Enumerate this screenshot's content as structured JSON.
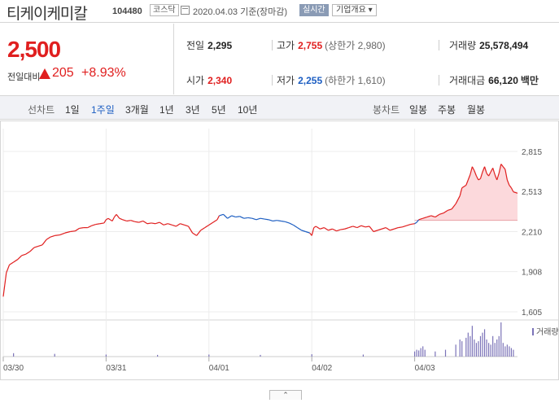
{
  "header": {
    "stock_name": "티케이케미칼",
    "stock_code": "104480",
    "market": "코스닥",
    "date_text": "2020.04.03 기준(장마감)",
    "realtime_label": "실시간",
    "company_info_label": "기업개요 ▾",
    "calendar_icon": "calendar-icon"
  },
  "price": {
    "current": "2,500",
    "change_label": "전일대비",
    "change_value": "205",
    "change_pct": "+8.93%",
    "direction": "up"
  },
  "stats": {
    "prev_close_label": "전일",
    "prev_close": "2,295",
    "high_label": "고가",
    "high": "2,755",
    "upper_limit": "(상한가 2,980)",
    "volume_label": "거래량",
    "volume": "25,578,494",
    "open_label": "시가",
    "open": "2,340",
    "low_label": "저가",
    "low": "2,255",
    "lower_limit": "(하한가 1,610)",
    "amount_label": "거래대금",
    "amount": "66,120",
    "amount_unit": "백만"
  },
  "periods": {
    "line_label": "선차트",
    "line_tabs": [
      "1일",
      "1주일",
      "3개월",
      "1년",
      "3년",
      "5년",
      "10년"
    ],
    "selected": "1주일",
    "candle_label": "봉차트",
    "candle_tabs": [
      "일봉",
      "주봉",
      "월봉"
    ]
  },
  "colors": {
    "up": "#e01f1f",
    "down": "#1d5ec2",
    "volume": "#7b73b8",
    "fill": "#fcd9dc"
  },
  "chart_data": {
    "type": "line",
    "title": "",
    "x_labels": [
      "03/30",
      "03/31",
      "04/01",
      "04/02",
      "04/03"
    ],
    "y_ticks": [
      2815,
      2513,
      2210,
      1908,
      1605
    ],
    "ylim": [
      1605,
      2815
    ],
    "reference_price": 2295,
    "grid": true,
    "volume_legend": "거래량",
    "collapse_label": "⌃",
    "series": [
      {
        "values": [
          [
            0,
            1720
          ],
          [
            0.03,
            1900
          ],
          [
            0.06,
            1960
          ],
          [
            0.1,
            1980
          ],
          [
            0.14,
            2000
          ],
          [
            0.18,
            2030
          ],
          [
            0.22,
            2040
          ],
          [
            0.26,
            2060
          ],
          [
            0.3,
            2090
          ],
          [
            0.34,
            2100
          ],
          [
            0.38,
            2110
          ],
          [
            0.42,
            2150
          ],
          [
            0.46,
            2170
          ],
          [
            0.5,
            2180
          ],
          [
            0.55,
            2185
          ],
          [
            0.6,
            2200
          ],
          [
            0.65,
            2210
          ],
          [
            0.7,
            2215
          ],
          [
            0.74,
            2235
          ],
          [
            0.78,
            2240
          ],
          [
            0.82,
            2240
          ],
          [
            0.86,
            2255
          ],
          [
            0.9,
            2265
          ],
          [
            0.94,
            2270
          ],
          [
            0.98,
            2275
          ],
          [
            1.0,
            2300
          ],
          [
            1.02,
            2310
          ],
          [
            1.04,
            2300
          ],
          [
            1.06,
            2290
          ],
          [
            1.08,
            2320
          ],
          [
            1.1,
            2340
          ],
          [
            1.13,
            2310
          ],
          [
            1.16,
            2300
          ],
          [
            1.2,
            2290
          ],
          [
            1.24,
            2295
          ],
          [
            1.28,
            2285
          ],
          [
            1.32,
            2280
          ],
          [
            1.36,
            2290
          ],
          [
            1.4,
            2270
          ],
          [
            1.44,
            2275
          ],
          [
            1.48,
            2270
          ],
          [
            1.52,
            2280
          ],
          [
            1.56,
            2260
          ],
          [
            1.6,
            2270
          ],
          [
            1.64,
            2260
          ],
          [
            1.68,
            2250
          ],
          [
            1.72,
            2270
          ],
          [
            1.76,
            2260
          ],
          [
            1.8,
            2250
          ],
          [
            1.84,
            2200
          ],
          [
            1.88,
            2180
          ],
          [
            1.92,
            2220
          ],
          [
            1.96,
            2240
          ],
          [
            2.0,
            2260
          ],
          [
            2.04,
            2280
          ],
          [
            2.08,
            2300
          ],
          [
            2.1,
            2330
          ],
          [
            2.14,
            2340
          ],
          [
            2.18,
            2310
          ],
          [
            2.22,
            2330
          ],
          [
            2.26,
            2320
          ],
          [
            2.3,
            2325
          ],
          [
            2.34,
            2310
          ],
          [
            2.38,
            2315
          ],
          [
            2.42,
            2310
          ],
          [
            2.46,
            2300
          ],
          [
            2.5,
            2310
          ],
          [
            2.54,
            2305
          ],
          [
            2.58,
            2300
          ],
          [
            2.62,
            2290
          ],
          [
            2.66,
            2295
          ],
          [
            2.7,
            2290
          ],
          [
            2.74,
            2285
          ],
          [
            2.78,
            2275
          ],
          [
            2.82,
            2260
          ],
          [
            2.86,
            2240
          ],
          [
            2.9,
            2220
          ],
          [
            2.94,
            2210
          ],
          [
            2.98,
            2200
          ],
          [
            3.0,
            2180
          ],
          [
            3.02,
            2240
          ],
          [
            3.04,
            2250
          ],
          [
            3.08,
            2230
          ],
          [
            3.12,
            2240
          ],
          [
            3.16,
            2220
          ],
          [
            3.2,
            2230
          ],
          [
            3.24,
            2215
          ],
          [
            3.28,
            2225
          ],
          [
            3.32,
            2230
          ],
          [
            3.36,
            2240
          ],
          [
            3.4,
            2250
          ],
          [
            3.44,
            2240
          ],
          [
            3.48,
            2255
          ],
          [
            3.52,
            2245
          ],
          [
            3.56,
            2250
          ],
          [
            3.6,
            2210
          ],
          [
            3.64,
            2220
          ],
          [
            3.68,
            2230
          ],
          [
            3.72,
            2240
          ],
          [
            3.76,
            2220
          ],
          [
            3.8,
            2230
          ],
          [
            3.84,
            2240
          ],
          [
            3.88,
            2245
          ],
          [
            3.92,
            2255
          ],
          [
            3.96,
            2265
          ],
          [
            4.0,
            2270
          ],
          [
            4.02,
            2280
          ],
          [
            4.04,
            2300
          ],
          [
            4.08,
            2310
          ],
          [
            4.12,
            2320
          ],
          [
            4.16,
            2330
          ],
          [
            4.2,
            2320
          ],
          [
            4.24,
            2340
          ],
          [
            4.28,
            2350
          ],
          [
            4.32,
            2370
          ],
          [
            4.36,
            2380
          ],
          [
            4.4,
            2420
          ],
          [
            4.44,
            2480
          ],
          [
            4.46,
            2540
          ],
          [
            4.5,
            2560
          ],
          [
            4.52,
            2600
          ],
          [
            4.54,
            2640
          ],
          [
            4.56,
            2700
          ],
          [
            4.58,
            2670
          ],
          [
            4.6,
            2630
          ],
          [
            4.62,
            2600
          ],
          [
            4.64,
            2610
          ],
          [
            4.66,
            2660
          ],
          [
            4.68,
            2700
          ],
          [
            4.7,
            2650
          ],
          [
            4.72,
            2630
          ],
          [
            4.74,
            2660
          ],
          [
            4.76,
            2690
          ],
          [
            4.78,
            2640
          ],
          [
            4.8,
            2600
          ],
          [
            4.82,
            2650
          ],
          [
            4.84,
            2720
          ],
          [
            4.86,
            2700
          ],
          [
            4.88,
            2680
          ],
          [
            4.9,
            2600
          ],
          [
            4.92,
            2560
          ],
          [
            4.94,
            2540
          ],
          [
            4.96,
            2510
          ],
          [
            5.0,
            2500
          ]
        ]
      }
    ],
    "volume_bars_note": "",
    "volume_values": [
      [
        0.1,
        0.1
      ],
      [
        0.5,
        0.08
      ],
      [
        1.0,
        0.06
      ],
      [
        1.5,
        0.05
      ],
      [
        2.0,
        0.06
      ],
      [
        2.5,
        0.05
      ],
      [
        3.0,
        0.07
      ],
      [
        3.5,
        0.06
      ],
      [
        4.0,
        0.15
      ],
      [
        4.02,
        0.2
      ],
      [
        4.04,
        0.18
      ],
      [
        4.06,
        0.25
      ],
      [
        4.08,
        0.3
      ],
      [
        4.1,
        0.2
      ],
      [
        4.2,
        0.15
      ],
      [
        4.3,
        0.2
      ],
      [
        4.4,
        0.35
      ],
      [
        4.44,
        0.5
      ],
      [
        4.46,
        0.45
      ],
      [
        4.5,
        0.55
      ],
      [
        4.52,
        0.7
      ],
      [
        4.54,
        0.6
      ],
      [
        4.56,
        0.9
      ],
      [
        4.58,
        0.5
      ],
      [
        4.6,
        0.4
      ],
      [
        4.62,
        0.45
      ],
      [
        4.64,
        0.6
      ],
      [
        4.66,
        0.7
      ],
      [
        4.68,
        0.8
      ],
      [
        4.7,
        0.5
      ],
      [
        4.72,
        0.4
      ],
      [
        4.74,
        0.35
      ],
      [
        4.76,
        0.6
      ],
      [
        4.78,
        0.4
      ],
      [
        4.8,
        0.5
      ],
      [
        4.82,
        0.6
      ],
      [
        4.84,
        1.0
      ],
      [
        4.86,
        0.4
      ],
      [
        4.88,
        0.3
      ],
      [
        4.9,
        0.35
      ],
      [
        4.92,
        0.3
      ],
      [
        4.94,
        0.25
      ],
      [
        4.96,
        0.2
      ]
    ]
  }
}
